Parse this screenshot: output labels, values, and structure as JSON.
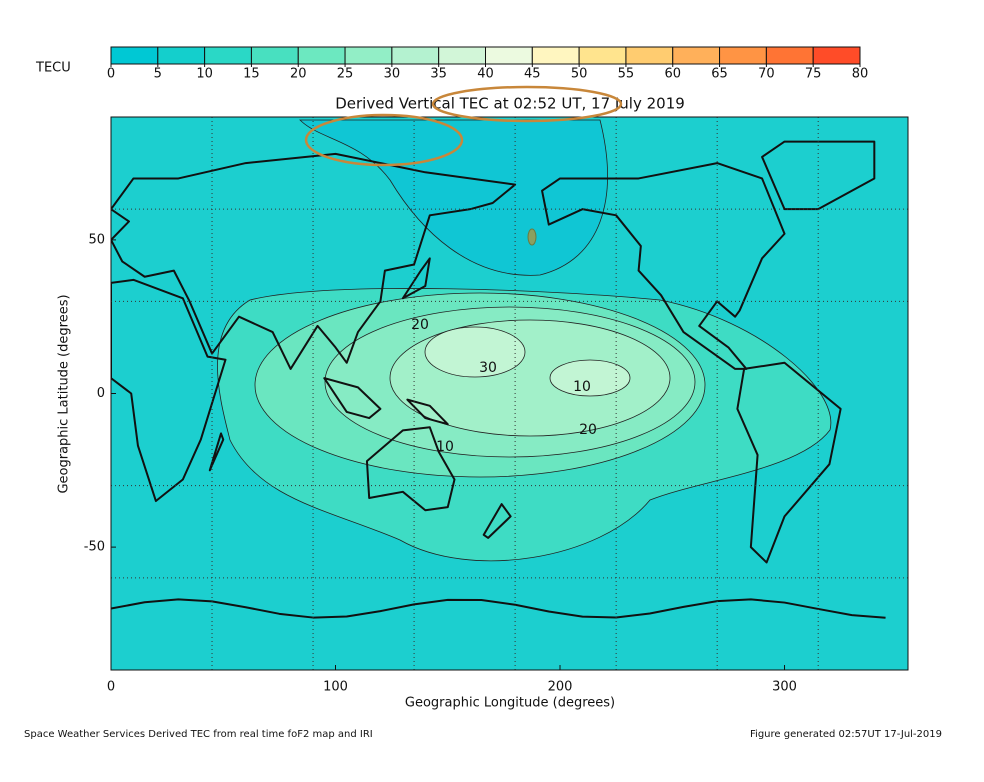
{
  "colorbar": {
    "label": "TECU",
    "ticks": [
      0,
      5,
      10,
      15,
      20,
      25,
      30,
      35,
      40,
      45,
      50,
      55,
      60,
      65,
      70,
      75,
      80
    ],
    "colors": [
      "#00c8d4",
      "#14cfcc",
      "#2ad8c6",
      "#48e0c0",
      "#6ce8c0",
      "#92eec6",
      "#b4f2d0",
      "#d2f6d8",
      "#ecfae0",
      "#fff6c0",
      "#ffe48e",
      "#ffcc70",
      "#ffb05a",
      "#ff9444",
      "#ff7434",
      "#ff4c28"
    ]
  },
  "map": {
    "title": "Derived Vertical TEC at 02:52 UT, 17 July 2019",
    "xlabel": "Geographic Longitude (degrees)",
    "ylabel": "Geographic Latitude (degrees)",
    "xlim": [
      0,
      355
    ],
    "ylim": [
      -90,
      90
    ],
    "xticks": [
      0,
      100,
      200,
      300
    ],
    "yticks": [
      -50,
      0,
      50
    ],
    "grid_lons": [
      45,
      90,
      135,
      180,
      225,
      270,
      315
    ],
    "grid_lats": [
      -60,
      -30,
      30,
      60
    ],
    "contour_labels": [
      20,
      30,
      10,
      20,
      10
    ]
  },
  "footer": {
    "left": "Space Weather Services Derived TEC from real time foF2 map and IRI",
    "right": "Figure generated 02:57UT 17-Jul-2019"
  }
}
